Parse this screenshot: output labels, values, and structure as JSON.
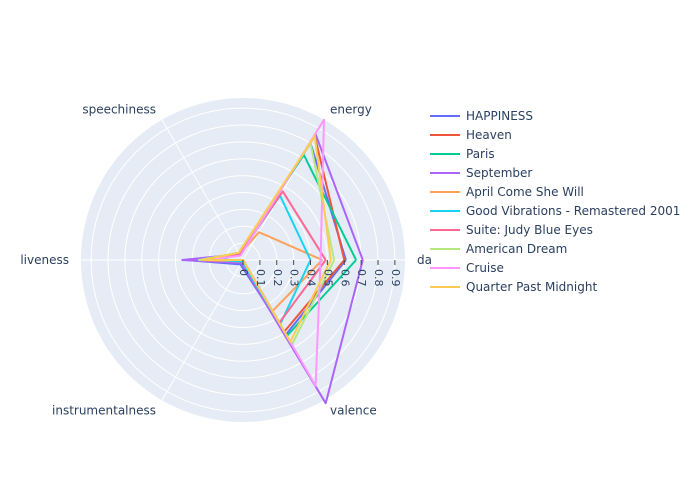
{
  "chart_data": {
    "type": "radar",
    "axes": [
      "danceability",
      "energy",
      "speechiness",
      "liveness",
      "instrumentalness",
      "valence"
    ],
    "axis_display": [
      "da",
      "energy",
      "speechiness",
      "liveness",
      "instrumentalness",
      "valence"
    ],
    "radial_range": [
      0,
      0.96
    ],
    "radial_ticks": [
      "0",
      "0.1",
      "0.2",
      "0.3",
      "0.4",
      "0.5",
      "0.6",
      "0.7",
      "0.8",
      "0.9"
    ],
    "tick_values": [
      0,
      0.1,
      0.2,
      0.3,
      0.4,
      0.5,
      0.6,
      0.7,
      0.8,
      0.9
    ],
    "bg_color": "#e5ecf6",
    "grid_color": "#ffffff",
    "series": [
      {
        "name": "HAPPINESS",
        "color": "#636efa",
        "values": [
          0.61,
          0.8,
          0.04,
          0.34,
          0.03,
          0.51
        ]
      },
      {
        "name": "Heaven",
        "color": "#ef553b",
        "values": [
          0.6,
          0.85,
          0.04,
          0.26,
          0.0,
          0.49
        ]
      },
      {
        "name": "Paris",
        "color": "#00cc96",
        "values": [
          0.67,
          0.72,
          0.05,
          0.19,
          0.0,
          0.52
        ]
      },
      {
        "name": "September",
        "color": "#ab63fa",
        "values": [
          0.71,
          0.86,
          0.04,
          0.36,
          0.02,
          0.98
        ]
      },
      {
        "name": "April Come She Will",
        "color": "#ffa15a",
        "values": [
          0.47,
          0.19,
          0.04,
          0.26,
          0.01,
          0.35
        ]
      },
      {
        "name": "Good Vibrations - Remastered 2001",
        "color": "#19d3f3",
        "values": [
          0.4,
          0.44,
          0.04,
          0.14,
          0.01,
          0.44
        ]
      },
      {
        "name": "Suite: Judy Blue Eyes",
        "color": "#ff6692",
        "values": [
          0.49,
          0.47,
          0.04,
          0.21,
          0.0,
          0.43
        ]
      },
      {
        "name": "American Dream",
        "color": "#b6e880",
        "values": [
          0.54,
          0.8,
          0.05,
          0.26,
          0.0,
          0.58
        ]
      },
      {
        "name": "Cruise",
        "color": "#ff97ff",
        "values": [
          0.46,
          0.96,
          0.03,
          0.21,
          0.0,
          0.86
        ]
      },
      {
        "name": "Quarter Past Midnight",
        "color": "#fecb52",
        "values": [
          0.52,
          0.85,
          0.05,
          0.24,
          0.0,
          0.56
        ]
      }
    ]
  }
}
